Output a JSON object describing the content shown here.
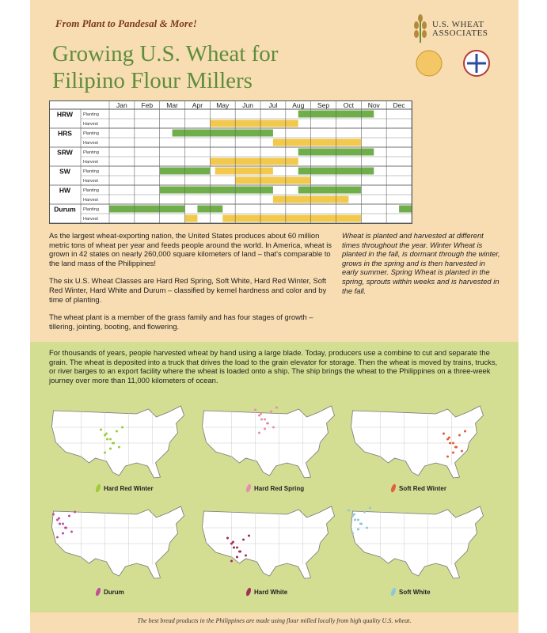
{
  "header": {
    "tagline": "From Plant to Pandesal & More!",
    "title_line1": "Growing U.S. Wheat for",
    "title_line2": "Filipino Flour Millers",
    "logo_line1": "U.S. WHEAT",
    "logo_line2": "ASSOCIATES"
  },
  "calendar": {
    "months": [
      "Jan",
      "Feb",
      "Mar",
      "Apr",
      "May",
      "Jun",
      "Jul",
      "Aug",
      "Sep",
      "Oct",
      "Nov",
      "Dec"
    ],
    "classes": [
      {
        "name": "HRW",
        "rows": [
          {
            "label": "Planting",
            "bars": [
              {
                "start": 7.5,
                "end": 10.5,
                "color": "#6fae4a"
              }
            ]
          },
          {
            "label": "Harvest",
            "bars": [
              {
                "start": 4,
                "end": 7.5,
                "color": "#f2c94c"
              }
            ]
          }
        ]
      },
      {
        "name": "HRS",
        "rows": [
          {
            "label": "Planting",
            "bars": [
              {
                "start": 2.5,
                "end": 6.5,
                "color": "#6fae4a"
              }
            ]
          },
          {
            "label": "Harvest",
            "bars": [
              {
                "start": 6.5,
                "end": 10,
                "color": "#f2c94c"
              }
            ]
          }
        ]
      },
      {
        "name": "SRW",
        "rows": [
          {
            "label": "Planting",
            "bars": [
              {
                "start": 7.5,
                "end": 10.5,
                "color": "#6fae4a"
              }
            ]
          },
          {
            "label": "Harvest",
            "bars": [
              {
                "start": 4,
                "end": 7.5,
                "color": "#f2c94c"
              }
            ]
          }
        ]
      },
      {
        "name": "SW",
        "rows": [
          {
            "label": "Planting",
            "bars": [
              {
                "start": 2,
                "end": 4,
                "color": "#6fae4a"
              },
              {
                "start": 4.2,
                "end": 6.5,
                "color": "#f2c94c"
              },
              {
                "start": 7.5,
                "end": 10.5,
                "color": "#6fae4a"
              }
            ]
          },
          {
            "label": "Harvest",
            "bars": [
              {
                "start": 5,
                "end": 8,
                "color": "#f2c94c"
              }
            ]
          }
        ]
      },
      {
        "name": "HW",
        "rows": [
          {
            "label": "Planting",
            "bars": [
              {
                "start": 2,
                "end": 6.5,
                "color": "#6fae4a"
              },
              {
                "start": 7.5,
                "end": 10,
                "color": "#6fae4a"
              }
            ]
          },
          {
            "label": "Harvest",
            "bars": [
              {
                "start": 6.5,
                "end": 9.5,
                "color": "#f2c94c"
              }
            ]
          }
        ]
      },
      {
        "name": "Durum",
        "rows": [
          {
            "label": "Planting",
            "bars": [
              {
                "start": 0,
                "end": 3,
                "color": "#6fae4a"
              },
              {
                "start": 3.5,
                "end": 4.5,
                "color": "#6fae4a"
              },
              {
                "start": 11.5,
                "end": 12,
                "color": "#6fae4a"
              }
            ]
          },
          {
            "label": "Harvest",
            "bars": [
              {
                "start": 3,
                "end": 3.5,
                "color": "#f2c94c"
              },
              {
                "start": 4.5,
                "end": 10,
                "color": "#f2c94c"
              }
            ]
          }
        ]
      }
    ]
  },
  "intro": {
    "paragraphs": [
      "As the largest wheat-exporting nation, the United States produces about 60 million metric tons of wheat per year and feeds people around the world. In America, wheat is grown in 42 states on nearly 260,000 square kilometers of land – that's comparable to the land mass of the Philippines!",
      "The six U.S. Wheat Classes are Hard Red Spring, Soft White, Hard Red Winter, Soft Red Winter, Hard White and Durum – classified by kernel hardness and color and by time of planting.",
      "The wheat plant is a member of the grass family and has four stages of growth – tillering, jointing, booting, and flowering."
    ],
    "sidebar": "Wheat is planted and harvested at different times throughout the year. Winter Wheat is planted in the fall, is dormant through the winter, grows in the spring and is then harvested in early summer. Spring Wheat is planted in the spring, sprouts within weeks and is harvested in the fall."
  },
  "transport": {
    "text": "For thousands of years, people harvested wheat by hand using a large blade. Today, producers use a combine to cut and separate the grain. The wheat is deposited into a truck that drives the load to the grain elevator for storage. Then the wheat is moved by trains, trucks, or river barges to an export facility where the wheat is loaded onto a ship. The ship brings the wheat to the Philippines on a three-week journey over more than 11,000 kilometers of ocean."
  },
  "maps": [
    {
      "label": "Hard Red Winter",
      "color": "#9ccc3a"
    },
    {
      "label": "Hard Red Spring",
      "color": "#e58fb0"
    },
    {
      "label": "Soft Red Winter",
      "color": "#e0603a"
    },
    {
      "label": "Durum",
      "color": "#c0509a"
    },
    {
      "label": "Hard White",
      "color": "#a0305a"
    },
    {
      "label": "Soft White",
      "color": "#8ec6e0"
    }
  ],
  "footer": "The best bread products in the Philippines are made using flour milled locally from high quality U.S. wheat."
}
